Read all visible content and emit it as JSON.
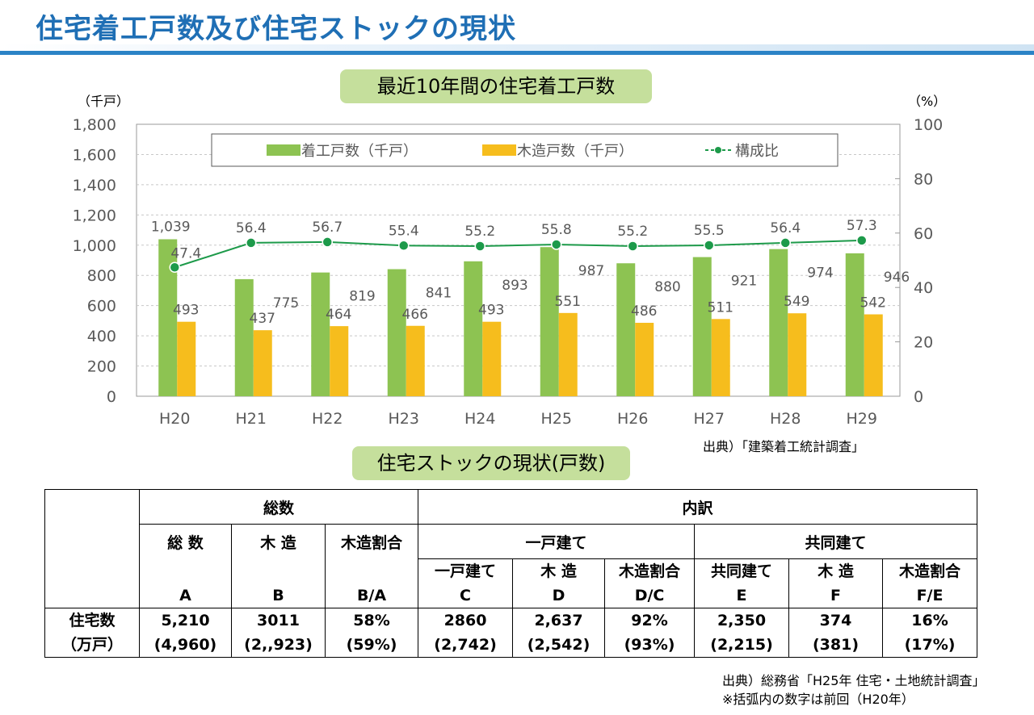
{
  "page": {
    "title": "住宅着工戸数及び住宅ストックの現状"
  },
  "chart_data": {
    "type": "bar",
    "title": "最近10年間の住宅着工戸数",
    "left_unit": "（千戸）",
    "right_unit": "（%）",
    "categories": [
      "H20",
      "H21",
      "H22",
      "H23",
      "H24",
      "H25",
      "H26",
      "H27",
      "H28",
      "H29"
    ],
    "y_ticks": [
      "1,800",
      "1,600",
      "1,400",
      "1,200",
      "1,000",
      "800",
      "600",
      "400",
      "200",
      "0"
    ],
    "y2_ticks": [
      "100",
      "80",
      "60",
      "40",
      "20",
      "0"
    ],
    "ylim": [
      0,
      1800
    ],
    "y2lim": [
      0,
      100
    ],
    "grid": true,
    "legend_position": "top",
    "series": [
      {
        "name": "着工戸数（千戸）",
        "type": "bar",
        "axis": "left",
        "color": "#8dc352",
        "values": [
          1039,
          775,
          819,
          841,
          893,
          987,
          880,
          921,
          974,
          946
        ],
        "labels": [
          "1,039",
          "775",
          "819",
          "841",
          "893",
          "987",
          "880",
          "921",
          "974",
          "946"
        ]
      },
      {
        "name": "木造戸数（千戸）",
        "type": "bar",
        "axis": "left",
        "color": "#f6bd1d",
        "values": [
          493,
          437,
          464,
          466,
          493,
          551,
          486,
          511,
          549,
          542
        ],
        "labels": [
          "493",
          "437",
          "464",
          "466",
          "493",
          "551",
          "486",
          "511",
          "549",
          "542"
        ]
      },
      {
        "name": "構成比",
        "type": "line",
        "axis": "right",
        "color": "#1d9a4a",
        "values": [
          47.4,
          56.4,
          56.7,
          55.4,
          55.2,
          55.8,
          55.2,
          55.5,
          56.4,
          57.3
        ],
        "labels": [
          "47.4",
          "56.4",
          "56.7",
          "55.4",
          "55.2",
          "55.8",
          "55.2",
          "55.5",
          "56.4",
          "57.3"
        ]
      }
    ],
    "source": "出典）「建築着工統計調査」"
  },
  "stock": {
    "title": "住宅ストックの現状(戸数)",
    "header_total": "総数",
    "header_breakdown": "内訳",
    "header_detached": "一戸建て",
    "header_collective": "共同建て",
    "col_total_name": "総 数",
    "col_total_letter": "A",
    "col_wood_name": "木 造",
    "col_wood_letter": "B",
    "col_ratio_name": "木造割合",
    "col_ratio_letter": "B/A",
    "col_det_name": "一戸建て",
    "col_det_letter": "C",
    "col_det_wood_name": "木 造",
    "col_det_wood_letter": "D",
    "col_det_ratio_name": "木造割合",
    "col_det_ratio_letter": "D/C",
    "col_col_name": "共同建て",
    "col_col_letter": "E",
    "col_col_wood_name": "木 造",
    "col_col_wood_letter": "F",
    "col_col_ratio_name": "木造割合",
    "col_col_ratio_letter": "F/E",
    "row_label_1": "住宅数",
    "row_label_2": "（万戸）",
    "values": [
      "5,210",
      "3011",
      "58%",
      "2860",
      "2,637",
      "92%",
      "2,350",
      "374",
      "16%"
    ],
    "previous": [
      "(4,960)",
      "(2,,923)",
      "(59%)",
      "(2,742)",
      "(2,542)",
      "(93%)",
      "(2,215)",
      "(381)",
      "(17%)"
    ],
    "source": "出典）総務省「H25年 住宅・土地統計調査」",
    "note": "※括弧内の数字は前回（H20年）"
  }
}
